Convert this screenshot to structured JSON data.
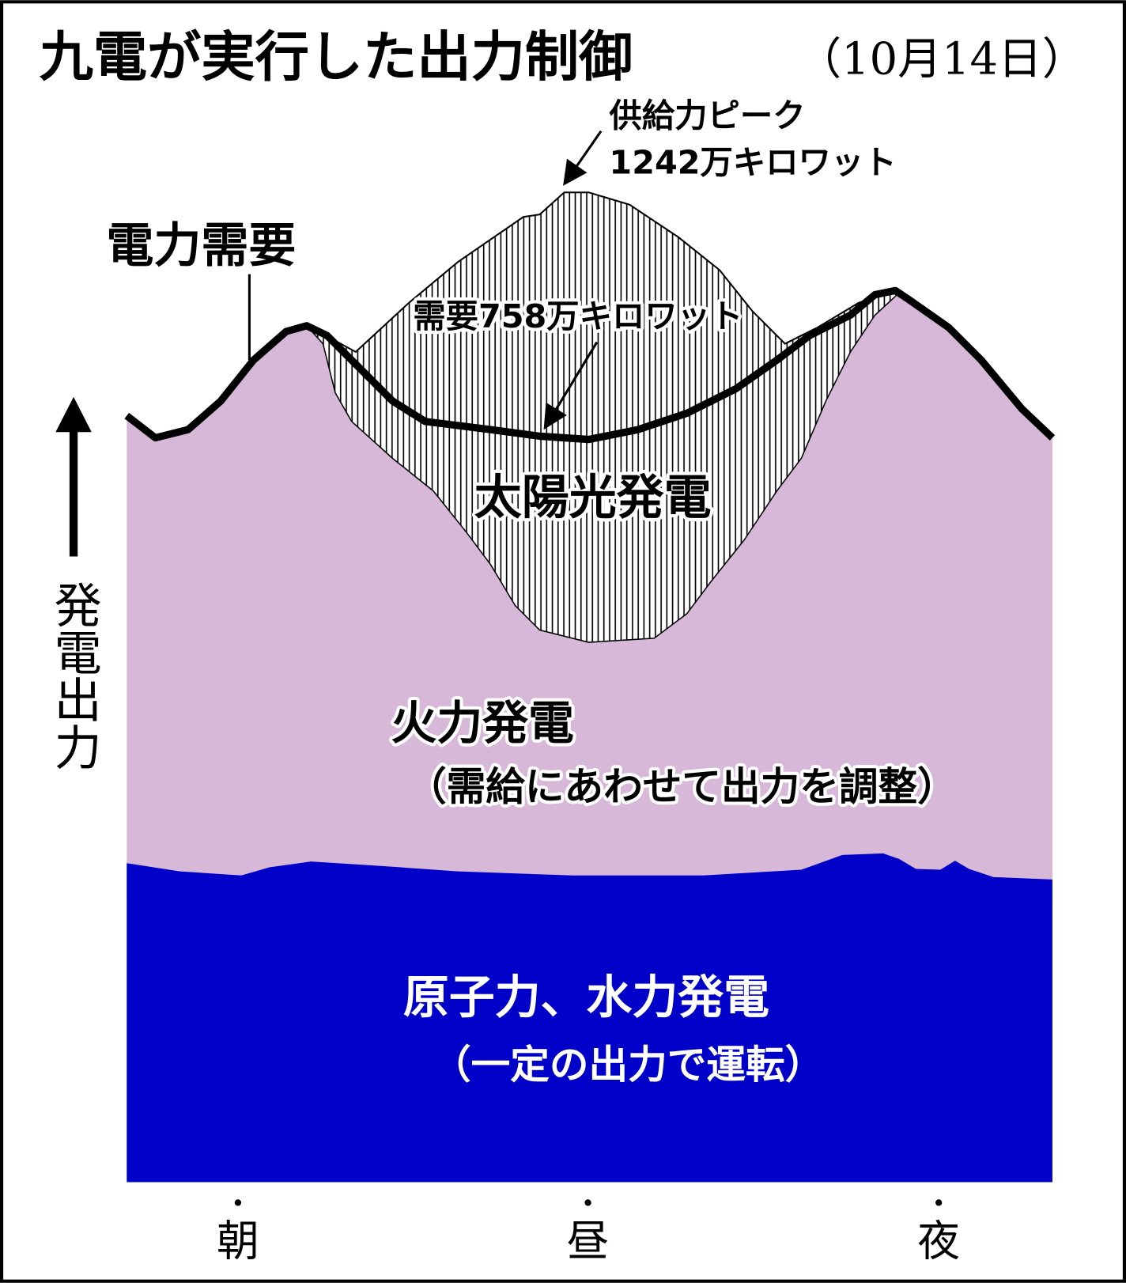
{
  "title": {
    "main": "九電が実行した出力制御",
    "date": "（10月14日）"
  },
  "annotations": {
    "peak_line1": "供給力ピーク",
    "peak_line2": "1242万キロワット",
    "demand": "電力需要",
    "demand_value": "需要758万キロワット"
  },
  "areas": {
    "solar": "太陽光発電",
    "thermal": "火力発電",
    "thermal_note": "（需給にあわせて出力を調整）",
    "base": "原子力、水力発電",
    "base_note": "（一定の出力で運転）"
  },
  "y_axis_label": "発電出力",
  "x_labels": [
    "朝",
    "昼",
    "夜"
  ]
}
